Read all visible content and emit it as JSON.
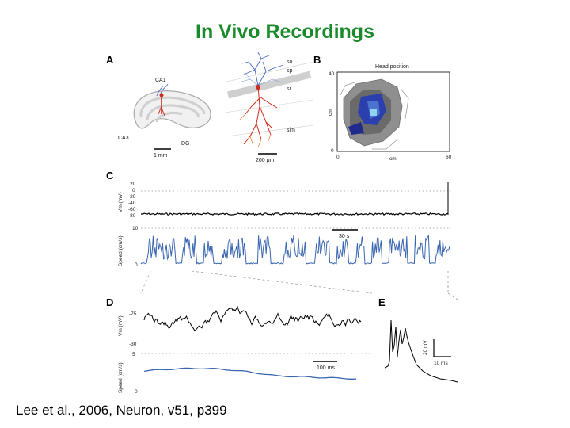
{
  "slide": {
    "title": "In Vivo Recordings",
    "citation": "Lee et al., 2006, Neuron, v51, p399"
  },
  "figure": {
    "panels": {
      "a": {
        "letter": "A",
        "labels": {
          "ca1": "CA1",
          "ca3": "CA3",
          "dg": "DG",
          "so": "so",
          "sp": "sp",
          "sr": "sr",
          "slm": "slm"
        },
        "scalebar_1": "1 mm",
        "scalebar_2": "200 μm"
      },
      "b": {
        "letter": "B",
        "title": "Head position",
        "y_tick_top": "40",
        "y_tick_bottom": "0",
        "y_unit": "cm",
        "x_tick_left": "0",
        "x_tick_right": "60",
        "x_unit": "cm"
      },
      "c": {
        "letter": "C",
        "vm_label": "Vm (mV)",
        "vm_ticks": [
          "20",
          "0",
          "-20",
          "-40",
          "-60",
          "-80"
        ],
        "speed_label": "Speed (cm/s)",
        "speed_ticks": [
          "10",
          "0"
        ],
        "scalebar": "30 s"
      },
      "d": {
        "letter": "D",
        "vm_label": "Vm (mV)",
        "vm_ticks": [
          "-75",
          "-30"
        ],
        "speed_label": "Speed (cm/s)",
        "speed_ticks": [
          "5",
          "0"
        ],
        "scalebar": "100 ms"
      },
      "e": {
        "letter": "E",
        "scalebar_v": "20 mV",
        "scalebar_t": "10 ms"
      }
    },
    "colors": {
      "title": "#1a8a2a",
      "speed_trace": "#3a66b0",
      "neuron_dendrites": "#4a6ac8",
      "neuron_soma": "#d02a1a",
      "occupancy_dark": "#1e2a8c",
      "occupancy_light": "#8fd4f0"
    }
  }
}
